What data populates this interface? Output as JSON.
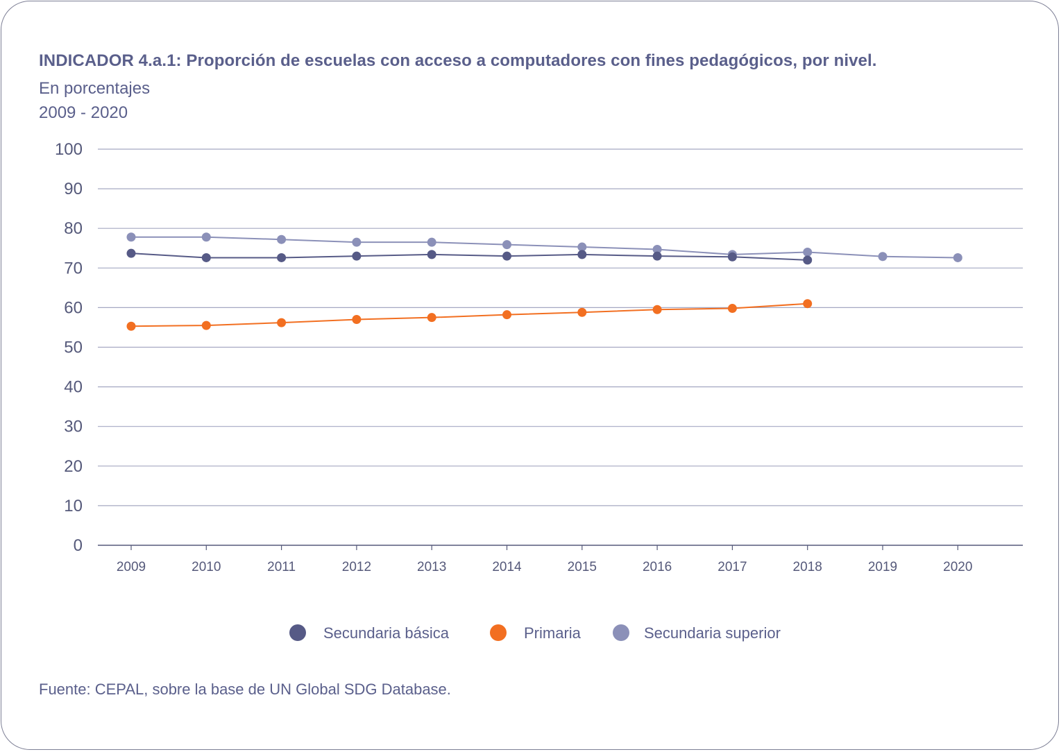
{
  "title": "INDICADOR 4.a.1: Proporción de escuelas con acceso a computadores con fines pedagógicos, por nivel.",
  "subtitle_line1": "En porcentajes",
  "subtitle_line2": "2009 - 2020",
  "source": "Fuente: CEPAL, sobre la base de UN Global SDG Database.",
  "colors": {
    "secundaria_basica": "#565a86",
    "primaria": "#f26f21",
    "secundaria_superior": "#8b90b8",
    "grid": "#a5a8c2",
    "axis": "#55597a"
  },
  "chart_data": {
    "type": "line",
    "categories": [
      "2009",
      "2010",
      "2011",
      "2012",
      "2013",
      "2014",
      "2015",
      "2016",
      "2017",
      "2018",
      "2019",
      "2020"
    ],
    "ylim": [
      0,
      100
    ],
    "yticks": [
      0,
      10,
      20,
      30,
      40,
      50,
      60,
      70,
      80,
      90,
      100
    ],
    "grid": true,
    "legend_position": "bottom",
    "series": [
      {
        "name": "Secundaria básica",
        "color": "#565a86",
        "values": [
          73.7,
          72.6,
          72.6,
          73.0,
          73.4,
          73.0,
          73.4,
          73.0,
          72.8,
          72.0,
          null,
          null
        ]
      },
      {
        "name": "Primaria",
        "color": "#f26f21",
        "values": [
          55.3,
          55.5,
          56.2,
          57.0,
          57.5,
          58.2,
          58.8,
          59.5,
          59.8,
          61.0,
          null,
          null
        ]
      },
      {
        "name": "Secundaria superior",
        "color": "#8b90b8",
        "values": [
          77.8,
          77.8,
          77.2,
          76.5,
          76.5,
          75.9,
          75.3,
          74.7,
          73.4,
          74.0,
          72.9,
          72.6
        ]
      }
    ]
  }
}
